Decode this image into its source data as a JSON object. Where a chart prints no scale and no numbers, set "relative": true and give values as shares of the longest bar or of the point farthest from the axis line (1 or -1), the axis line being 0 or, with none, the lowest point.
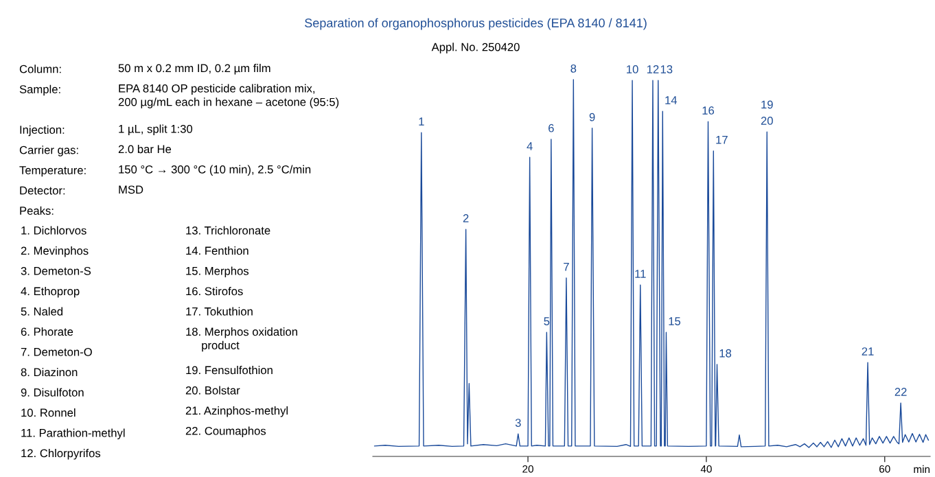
{
  "chart_data": {
    "type": "line",
    "relative": true,
    "title": "Separation of organophosphorus pesticides (EPA 8140 / 8141)",
    "subtitle": "Appl. No. 250420",
    "xlabel": "min",
    "xlim": [
      2.6,
      65.1
    ],
    "xticks": [
      20,
      40,
      60
    ],
    "tick_labels": "x",
    "grid": false,
    "legend": false,
    "marker": "none",
    "line_style": "solid",
    "series": [
      {
        "color": "#1a4a9a",
        "x": [
          2.8,
          4,
          5.5,
          7.8,
          8.05,
          8.3,
          10,
          11.5,
          12.8,
          13.04,
          13.22,
          13.4,
          13.6,
          15,
          16.5,
          17.5,
          18.7,
          18.9,
          19.1,
          20.0,
          20.2,
          20.4,
          21.0,
          21.95,
          22.1,
          22.3,
          22.45,
          22.6,
          22.8,
          24.1,
          24.3,
          24.5,
          24.9,
          25.1,
          25.3,
          27.0,
          27.2,
          27.45,
          30,
          31.0,
          31.5,
          31.7,
          31.9,
          32.4,
          32.6,
          32.8,
          33.8,
          34.0,
          34.2,
          34.4,
          34.6,
          34.85,
          34.95,
          35.1,
          35.3,
          35.4,
          35.5,
          35.65,
          38,
          40.0,
          40.2,
          40.45,
          40.6,
          40.8,
          41.0,
          41.05,
          41.2,
          41.4,
          43.5,
          43.7,
          43.9,
          45.5,
          46.6,
          46.8,
          47.0,
          48,
          49,
          50,
          50.5,
          51,
          51.5,
          52,
          52.4,
          52.8,
          53.2,
          53.6,
          54,
          54.4,
          54.8,
          55.2,
          55.6,
          56,
          56.4,
          56.8,
          57.2,
          57.6,
          57.9,
          58.1,
          58.3,
          58.6,
          59,
          59.4,
          59.8,
          60.2,
          60.6,
          61,
          61.4,
          61.6,
          61.8,
          62.0,
          62.3,
          62.7,
          63.1,
          63.5,
          63.9,
          64.3,
          64.6,
          64.9
        ],
        "values": [
          0.004,
          0.006,
          0.003,
          0.004,
          0.856,
          0.004,
          0.006,
          0.003,
          0.004,
          0.593,
          0.01,
          0.174,
          0.004,
          0.008,
          0.005,
          0.01,
          0.004,
          0.037,
          0.004,
          0.004,
          0.789,
          0.004,
          0.006,
          0.004,
          0.313,
          0.004,
          0.004,
          0.838,
          0.004,
          0.004,
          0.461,
          0.004,
          0.004,
          1.0,
          0.004,
          0.004,
          0.868,
          0.004,
          0.003,
          0.008,
          0.003,
          0.998,
          0.004,
          0.004,
          0.442,
          0.004,
          0.004,
          0.998,
          0.004,
          0.004,
          0.998,
          0.004,
          0.004,
          0.914,
          0.004,
          0.004,
          0.313,
          0.004,
          0.003,
          0.004,
          0.886,
          0.004,
          0.004,
          0.806,
          0.004,
          0.004,
          0.226,
          0.004,
          0.003,
          0.034,
          0.002,
          0.003,
          0.004,
          0.858,
          0.004,
          0.006,
          0.002,
          0.008,
          0.002,
          0.01,
          0.0,
          0.012,
          0.002,
          0.014,
          0.002,
          0.016,
          0.0,
          0.02,
          0.002,
          0.024,
          0.004,
          0.026,
          0.004,
          0.026,
          0.006,
          0.024,
          0.006,
          0.231,
          0.008,
          0.026,
          0.01,
          0.03,
          0.012,
          0.03,
          0.012,
          0.03,
          0.014,
          0.01,
          0.121,
          0.014,
          0.035,
          0.015,
          0.038,
          0.015,
          0.036,
          0.014,
          0.035,
          0.02
        ]
      }
    ],
    "annotations": [
      "Column:",
      "50 m x 0.2 mm ID, 0.2 µm film",
      "Sample:",
      "EPA 8140 OP pesticide calibration mix,\n200 µg/mL each in hexane – acetone (95:5)",
      "Injection:",
      "1 µL, split 1:30",
      "Carrier gas:",
      "2.0 bar He",
      "Temperature:",
      "150 °C → 300 °C (10 min), 2.5 °C/min",
      "Detector:",
      "MSD",
      "Peaks:",
      "1. Dichlorvos",
      "2. Mevinphos",
      "3. Demeton-S",
      "4. Ethoprop",
      "5. Naled",
      "6. Phorate",
      "7. Demeton-O",
      "8. Diazinon",
      "9. Disulfoton",
      "10. Ronnel",
      "11. Parathion-methyl",
      "12. Chlorpyrifos",
      "13. Trichloronate",
      "14. Fenthion",
      "15. Merphos",
      "16. Stirofos",
      "17. Tokuthion",
      "18. Merphos oxidation\n     product",
      "19. Fensulfothion",
      "20. Bolstar",
      "21. Azinphos-methyl",
      "22. Coumaphos",
      {
        "text": "1",
        "x": 8.05,
        "y": 0.856
      },
      {
        "text": "2",
        "x": 13.04,
        "y": 0.593
      },
      {
        "text": "3",
        "x": 18.9,
        "y": 0.037
      },
      {
        "text": "4",
        "x": 20.2,
        "y": 0.789
      },
      {
        "text": "5",
        "x": 22.1,
        "y": 0.313
      },
      {
        "text": "6",
        "x": 22.6,
        "y": 0.838
      },
      {
        "text": "7",
        "x": 24.3,
        "y": 0.461
      },
      {
        "text": "8",
        "x": 25.1,
        "y": 1.0
      },
      {
        "text": "9",
        "x": 27.2,
        "y": 0.868
      },
      {
        "text": "10",
        "x": 31.7,
        "y": 0.998
      },
      {
        "text": "11",
        "x": 32.6,
        "y": 0.442
      },
      {
        "text": "12",
        "x": 34.0,
        "y": 0.998
      },
      {
        "text": "13",
        "x": 34.6,
        "y": 0.998
      },
      {
        "text": "14",
        "x": 35.1,
        "y": 0.914
      },
      {
        "text": "15",
        "x": 35.5,
        "y": 0.313
      },
      {
        "text": "16",
        "x": 40.2,
        "y": 0.886
      },
      {
        "text": "17",
        "x": 40.8,
        "y": 0.806
      },
      {
        "text": "18",
        "x": 41.2,
        "y": 0.226
      },
      {
        "text": "19",
        "x": 46.8,
        "y": 0.858
      },
      {
        "text": "20",
        "x": 46.8,
        "y": 0.858
      },
      {
        "text": "21",
        "x": 58.1,
        "y": 0.231
      },
      {
        "text": "22",
        "x": 61.8,
        "y": 0.121
      }
    ]
  }
}
